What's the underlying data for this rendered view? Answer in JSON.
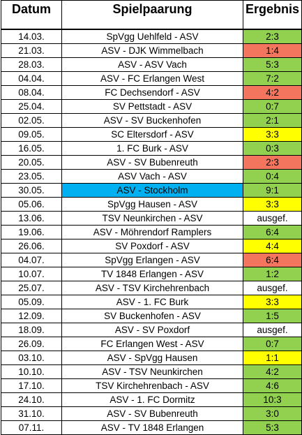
{
  "headers": {
    "date": "Datum",
    "match": "Spielpaarung",
    "result": "Ergebnis"
  },
  "colors": {
    "green": "#92d050",
    "red": "#f4755d",
    "yellow": "#ffff00",
    "blue": "#00b0f0"
  },
  "rows": [
    {
      "date": "14.03.",
      "match": "SpVgg Uehlfeld - ASV",
      "result": "2:3",
      "result_color": "green",
      "match_color": "none"
    },
    {
      "date": "21.03.",
      "match": "ASV - DJK Wimmelbach",
      "result": "1:4",
      "result_color": "red",
      "match_color": "none"
    },
    {
      "date": "28.03.",
      "match": "ASV - ASV Vach",
      "result": "5:3",
      "result_color": "green",
      "match_color": "none"
    },
    {
      "date": "04.04.",
      "match": "ASV - FC Erlangen West",
      "result": "7:2",
      "result_color": "green",
      "match_color": "none"
    },
    {
      "date": "08.04.",
      "match": "FC Dechsendorf - ASV",
      "result": "4:2",
      "result_color": "red",
      "match_color": "none"
    },
    {
      "date": "25.04.",
      "match": "SV Pettstadt - ASV",
      "result": "0:7",
      "result_color": "green",
      "match_color": "none"
    },
    {
      "date": "02.05.",
      "match": "ASV - SV Buckenhofen",
      "result": "2:1",
      "result_color": "green",
      "match_color": "none"
    },
    {
      "date": "09.05.",
      "match": "SC Eltersdorf - ASV",
      "result": "3:3",
      "result_color": "yellow",
      "match_color": "none"
    },
    {
      "date": "16.05.",
      "match": "1. FC Burk - ASV",
      "result": "0:3",
      "result_color": "green",
      "match_color": "none"
    },
    {
      "date": "20.05.",
      "match": "ASV - SV Bubenreuth",
      "result": "2:3",
      "result_color": "red",
      "match_color": "none"
    },
    {
      "date": "23.05.",
      "match": "ASV Vach - ASV",
      "result": "0:4",
      "result_color": "green",
      "match_color": "none"
    },
    {
      "date": "30.05.",
      "match": "ASV - Stockholm",
      "result": "9:1",
      "result_color": "green",
      "match_color": "blue"
    },
    {
      "date": "05.06.",
      "match": "SpVgg Hausen - ASV",
      "result": "3:3",
      "result_color": "yellow",
      "match_color": "none"
    },
    {
      "date": "13.06.",
      "match": "TSV Neunkirchen - ASV",
      "result": "ausgef.",
      "result_color": "none",
      "match_color": "none"
    },
    {
      "date": "19.06.",
      "match": "ASV - Möhrendorf Ramplers",
      "result": "6:4",
      "result_color": "green",
      "match_color": "none"
    },
    {
      "date": "26.06.",
      "match": "SV Poxdorf - ASV",
      "result": "4:4",
      "result_color": "yellow",
      "match_color": "none"
    },
    {
      "date": "04.07.",
      "match": "SpVgg Erlangen - ASV",
      "result": "6:4",
      "result_color": "red",
      "match_color": "none"
    },
    {
      "date": "10.07.",
      "match": "TV 1848 Erlangen - ASV",
      "result": "1:2",
      "result_color": "green",
      "match_color": "none"
    },
    {
      "date": "25.07.",
      "match": "ASV - TSV Kirchehrenbach",
      "result": "ausgef.",
      "result_color": "none",
      "match_color": "none"
    },
    {
      "date": "05.09.",
      "match": "ASV - 1. FC Burk",
      "result": "3:3",
      "result_color": "yellow",
      "match_color": "none"
    },
    {
      "date": "12.09.",
      "match": "SV Buckenhofen - ASV",
      "result": "1:5",
      "result_color": "green",
      "match_color": "none"
    },
    {
      "date": "18.09.",
      "match": "ASV - SV Poxdorf",
      "result": "ausgef.",
      "result_color": "none",
      "match_color": "none"
    },
    {
      "date": "26.09.",
      "match": "FC Erlangen West - ASV",
      "result": "0:7",
      "result_color": "green",
      "match_color": "none"
    },
    {
      "date": "03.10.",
      "match": "ASV - SpVgg Hausen",
      "result": "1:1",
      "result_color": "yellow",
      "match_color": "none"
    },
    {
      "date": "10.10.",
      "match": "ASV - TSV Neunkirchen",
      "result": "4:2",
      "result_color": "green",
      "match_color": "none"
    },
    {
      "date": "17.10.",
      "match": "TSV Kirchehrenbach - ASV",
      "result": "4:6",
      "result_color": "green",
      "match_color": "none"
    },
    {
      "date": "24.10.",
      "match": "ASV - 1. FC Dormitz",
      "result": "10:3",
      "result_color": "green",
      "match_color": "none"
    },
    {
      "date": "31.10.",
      "match": "ASV - SV Bubenreuth",
      "result": "3:0",
      "result_color": "green",
      "match_color": "none"
    },
    {
      "date": "07.11.",
      "match": "ASV - TV 1848 Erlangen",
      "result": "5:3",
      "result_color": "green",
      "match_color": "none"
    }
  ]
}
